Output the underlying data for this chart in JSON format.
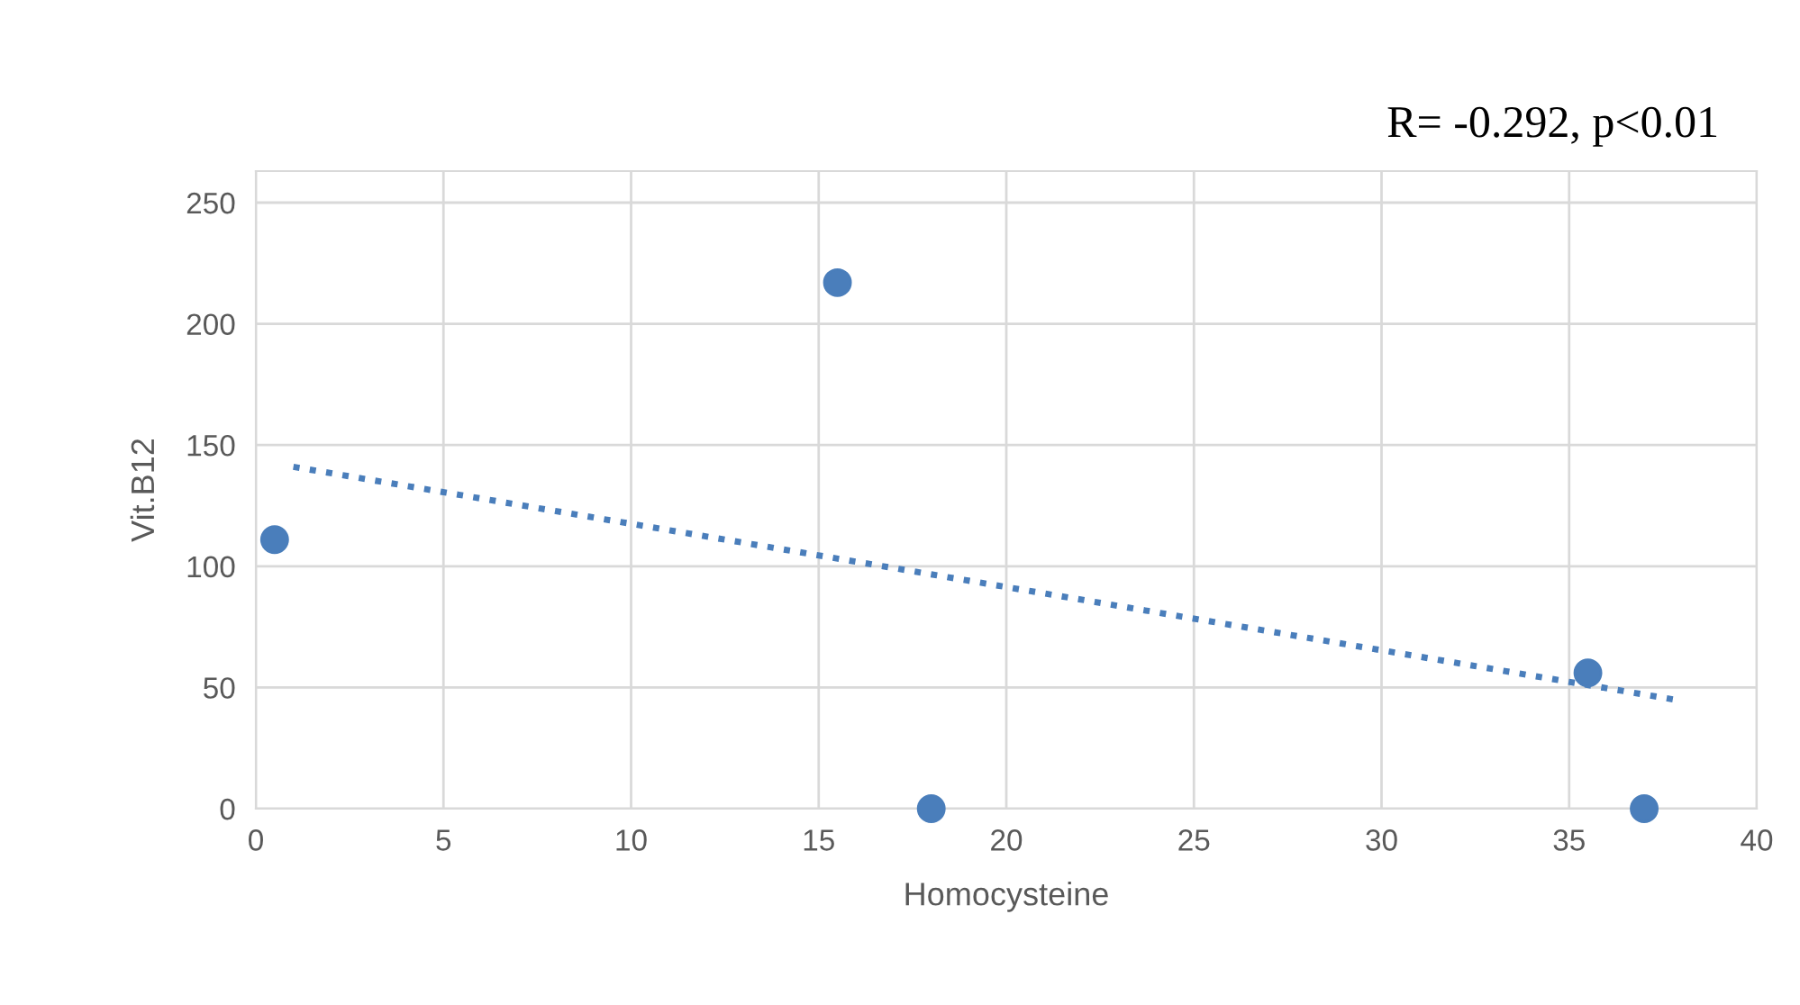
{
  "chart_data": {
    "type": "scatter",
    "xlabel": "Homocysteine",
    "ylabel": "Vit.B12",
    "annotations": [
      "R= -0.292, p<0.01"
    ],
    "xlim": [
      0,
      40
    ],
    "xticks": [
      0,
      5,
      10,
      15,
      20,
      25,
      30,
      35,
      40
    ],
    "ylim": [
      0,
      263
    ],
    "yticks": [
      0,
      50,
      100,
      150,
      200,
      250
    ],
    "grid": true,
    "legend": false,
    "series": [
      {
        "color": "#4a7ebb",
        "marker": "circle",
        "x": [
          0.5,
          15.5,
          18,
          35.5,
          37
        ],
        "values": [
          111,
          217,
          0,
          56,
          0
        ]
      },
      {
        "type": "line",
        "color": "#4a7ebb",
        "marker": "none",
        "line_style": "dotted",
        "x": [
          1,
          37.8
        ],
        "values": [
          141,
          45
        ]
      }
    ]
  }
}
